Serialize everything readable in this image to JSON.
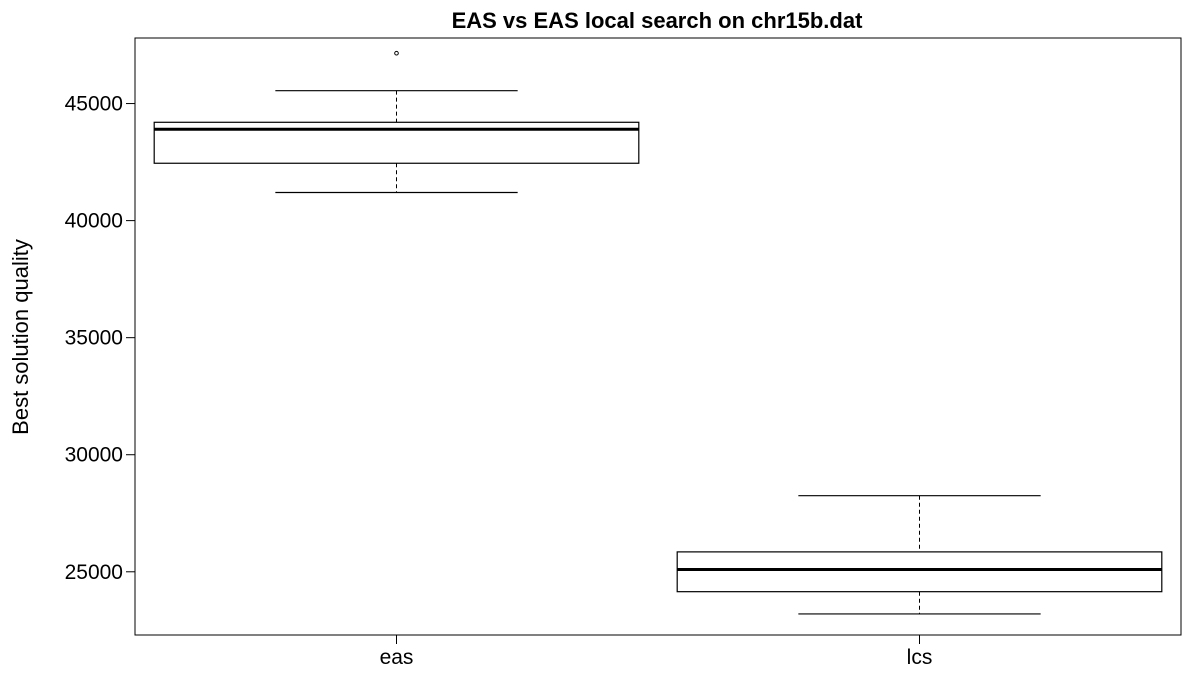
{
  "chart_data": {
    "type": "box",
    "title": "EAS vs EAS local search on chr15b.dat",
    "xlabel": "",
    "ylabel": "Best solution quality",
    "ylim": [
      22300,
      47800
    ],
    "y_ticks": [
      25000,
      30000,
      35000,
      40000,
      45000
    ],
    "grid": false,
    "categories": [
      "eas",
      "lcs"
    ],
    "boxes": [
      {
        "category": "eas",
        "whisker_low": 41200,
        "q1": 42450,
        "median": 43900,
        "q3": 44200,
        "whisker_high": 45550,
        "outliers": [
          47150
        ]
      },
      {
        "category": "lcs",
        "whisker_low": 23200,
        "q1": 24150,
        "median": 25100,
        "q3": 25850,
        "whisker_high": 28250,
        "outliers": []
      }
    ]
  }
}
